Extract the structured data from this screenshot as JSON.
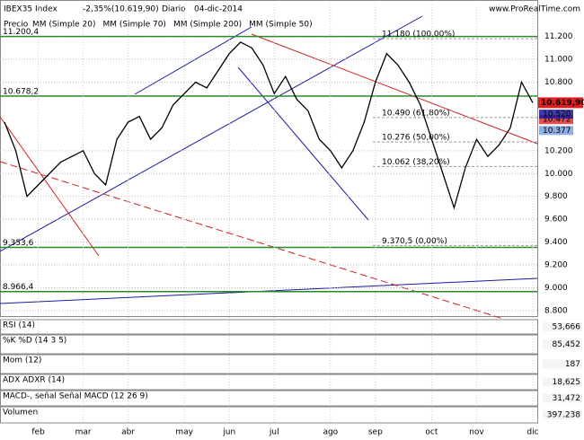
{
  "chart_data": {
    "type": "line",
    "header": {
      "instrument": "IBEX35 Index",
      "change": "-2,35%(10.619,90)",
      "period": "Diario",
      "date": "04-dic-2014",
      "site": "www.ProRealTime.com"
    },
    "legend_label": "Precio",
    "categories": [
      null,
      null,
      null,
      "feb",
      null,
      null,
      null,
      "mar",
      null,
      null,
      null,
      "abr",
      null,
      null,
      null,
      null,
      "may",
      null,
      null,
      null,
      "jun",
      null,
      null,
      null,
      "jul",
      null,
      null,
      null,
      null,
      "ago",
      null,
      null,
      null,
      "sep",
      null,
      null,
      null,
      null,
      "oct",
      null,
      null,
      null,
      "nov",
      null,
      null,
      null,
      null,
      "dic"
    ],
    "series": [
      {
        "name": "IBEX35",
        "color": "#000000",
        "values": [
          10450,
          10200,
          9800,
          9900,
          10000,
          10100,
          10150,
          10200,
          10000,
          9900,
          10300,
          10450,
          10500,
          10300,
          10400,
          10600,
          10700,
          10800,
          10750,
          10900,
          11050,
          11150,
          11100,
          10950,
          10700,
          10850,
          10650,
          10550,
          10300,
          10200,
          10050,
          10200,
          10450,
          10800,
          11050,
          10950,
          10800,
          10600,
          10300,
          10000,
          9700,
          10050,
          10300,
          10150,
          10250,
          10400,
          10800,
          10620
        ]
      }
    ],
    "indicators": [
      {
        "name": "MM (Simple 20)",
        "color": "#e03030",
        "last": 10472,
        "last_label": "10.472"
      },
      {
        "name": "MM (Simple 70)",
        "color": "#1a1aa0",
        "last": 10520,
        "last_label": "10.520"
      },
      {
        "name": "MM (Simple 200)",
        "color": "#2a7a2a"
      },
      {
        "name": "MM (Simple 50)",
        "color": "#7aa0e0",
        "last": 10377,
        "last_label": "10.377"
      }
    ],
    "last_price": {
      "value": 10619.9,
      "label": "10.619,90"
    },
    "ylim": [
      8760,
      11480
    ],
    "yticks": [
      {
        "value": 11200,
        "label": "11.200"
      },
      {
        "value": 11000,
        "label": "11.000"
      },
      {
        "value": 10800,
        "label": "10.800"
      },
      {
        "value": 10200,
        "label": "10.200"
      },
      {
        "value": 10000,
        "label": "10.000"
      },
      {
        "value": 9800,
        "label": "9.800"
      },
      {
        "value": 9600,
        "label": "9.600"
      },
      {
        "value": 9400,
        "label": "9.400"
      },
      {
        "value": 9200,
        "label": "9.200"
      },
      {
        "value": 9000,
        "label": "9.000"
      },
      {
        "value": 8800,
        "label": "8.800"
      }
    ],
    "annotations": [
      {
        "value": 11180,
        "label": "11.180 (100,00%)"
      },
      {
        "value": 10490,
        "label": "10.490 (61,80%)"
      },
      {
        "value": 10276,
        "label": "10.276 (50,00%)"
      },
      {
        "value": 10062,
        "label": "10.062 (38,20%)"
      },
      {
        "value": 9370.5,
        "label": "9.370,5 (0,00%)"
      }
    ],
    "left_levels": [
      {
        "value": 11200.4,
        "label": "11.200,4"
      },
      {
        "value": 10678.2,
        "label": "10.678,2"
      },
      {
        "value": 9353.6,
        "label": "9.353,6"
      },
      {
        "value": 8966.4,
        "label": "8.966,4"
      }
    ],
    "panels": [
      {
        "name": "RSI (14)",
        "last": 53.666,
        "last_label": "53,666"
      },
      {
        "name": "%K %D (14 3 5)",
        "last": 85.452,
        "last_label": "85,452"
      },
      {
        "name": "Mom (12)",
        "last": 187,
        "last_label": "187"
      },
      {
        "name": "ADX ADXR (14)",
        "last": 18.625,
        "last_label": "18,625"
      },
      {
        "name": "MACD-, señal Señal MACD (12 26 9)",
        "last": 31.472,
        "last_label": "31,472"
      },
      {
        "name": "Volumen",
        "last": 397238,
        "last_label": "397.238"
      }
    ]
  }
}
